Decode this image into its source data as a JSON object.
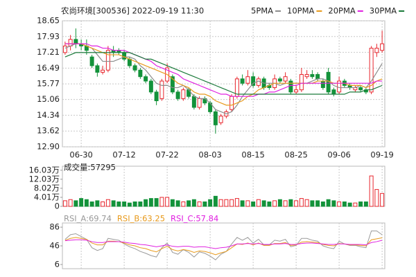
{
  "chart_data": [
    {
      "type": "candlestick",
      "title": "农尚环境[300536] 2022-09-19 11:30",
      "categories": [
        null,
        null,
        null,
        "06-30",
        null,
        null,
        null,
        null,
        null,
        null,
        null,
        "07-12",
        null,
        null,
        null,
        null,
        null,
        null,
        null,
        "07-22",
        null,
        null,
        null,
        null,
        null,
        null,
        null,
        "08-03",
        null,
        null,
        null,
        null,
        null,
        null,
        null,
        "08-15",
        null,
        null,
        null,
        null,
        null,
        null,
        null,
        "08-25",
        null,
        null,
        null,
        null,
        null,
        null,
        null,
        "09-06",
        null,
        null,
        null,
        null,
        null,
        null,
        null,
        "09-19"
      ],
      "open": [
        17.2,
        17.5,
        17.8,
        17.6,
        17.5,
        17.0,
        16.6,
        16.3,
        16.4,
        17.3,
        17.3,
        17.2,
        16.9,
        16.6,
        16.4,
        16.1,
        15.9,
        15.4,
        15.1,
        15.9,
        16.1,
        15.4,
        15.1,
        15.5,
        15.2,
        14.7,
        15.1,
        14.9,
        14.5,
        14.0,
        14.3,
        14.6,
        15.2,
        16.0,
        15.8,
        16.1,
        15.7,
        16.0,
        15.7,
        15.6,
        16.0,
        15.9,
        15.9,
        15.4,
        15.5,
        16.1,
        16.2,
        16.2,
        15.9,
        16.3,
        15.5,
        15.4,
        15.9,
        15.7,
        15.5,
        15.6,
        15.5,
        15.4,
        17.2,
        17.3
      ],
      "high": [
        17.7,
        18.0,
        18.3,
        17.8,
        17.8,
        17.1,
        16.7,
        16.6,
        17.5,
        17.5,
        17.4,
        17.3,
        17.0,
        16.7,
        16.5,
        16.2,
        16.0,
        15.5,
        16.0,
        16.7,
        16.2,
        15.5,
        15.6,
        15.6,
        15.3,
        15.2,
        15.2,
        15.0,
        14.6,
        14.4,
        14.6,
        15.3,
        16.1,
        16.2,
        16.4,
        16.3,
        16.1,
        16.1,
        15.8,
        16.2,
        16.1,
        16.3,
        16.0,
        15.7,
        16.5,
        16.4,
        16.4,
        16.3,
        16.0,
        16.5,
        15.6,
        16.1,
        16.0,
        15.8,
        15.7,
        15.7,
        15.6,
        17.5,
        17.6,
        18.2
      ],
      "low": [
        17.1,
        17.3,
        17.4,
        17.3,
        17.1,
        16.5,
        16.1,
        16.2,
        16.3,
        17.0,
        17.1,
        16.8,
        16.5,
        16.3,
        16.0,
        15.8,
        15.3,
        14.8,
        15.0,
        15.8,
        15.3,
        15.0,
        15.0,
        15.1,
        14.6,
        14.6,
        14.8,
        14.4,
        13.5,
        13.9,
        14.2,
        14.5,
        15.1,
        15.7,
        15.7,
        15.6,
        15.6,
        15.5,
        15.5,
        15.5,
        15.8,
        15.8,
        15.3,
        15.3,
        15.4,
        16.0,
        16.0,
        15.9,
        15.5,
        15.3,
        15.2,
        15.3,
        15.6,
        15.5,
        15.4,
        15.4,
        15.3,
        15.3,
        17.0,
        17.2
      ],
      "close": [
        17.5,
        17.8,
        17.6,
        17.5,
        17.3,
        16.6,
        16.3,
        16.4,
        17.3,
        17.2,
        17.2,
        16.9,
        16.6,
        16.4,
        16.1,
        15.9,
        15.4,
        15.0,
        15.9,
        16.5,
        15.4,
        15.1,
        15.5,
        15.2,
        14.7,
        15.1,
        14.9,
        14.5,
        13.9,
        14.3,
        14.5,
        15.2,
        16.0,
        15.8,
        16.1,
        15.7,
        16.0,
        15.6,
        15.6,
        16.0,
        15.9,
        16.1,
        15.4,
        15.5,
        16.2,
        16.2,
        16.1,
        16.0,
        15.6,
        15.4,
        15.3,
        15.9,
        15.7,
        15.6,
        15.6,
        15.5,
        15.4,
        17.4,
        17.4,
        17.6
      ],
      "up_color": "#e8242b",
      "down_color": "#13923a",
      "series": [
        {
          "name": "5PMA",
          "color": "#8c8c8c",
          "values": [
            17.4,
            17.5,
            17.6,
            17.6,
            17.5,
            17.4,
            17.1,
            16.8,
            16.8,
            16.8,
            16.9,
            17.0,
            17.0,
            16.9,
            16.6,
            16.4,
            16.1,
            15.8,
            15.7,
            15.7,
            15.6,
            15.6,
            15.7,
            15.5,
            15.2,
            15.1,
            15.1,
            14.9,
            14.6,
            14.5,
            14.4,
            14.5,
            14.8,
            15.2,
            15.5,
            15.8,
            15.9,
            15.8,
            15.8,
            15.8,
            15.7,
            15.8,
            15.8,
            15.8,
            15.8,
            15.8,
            15.9,
            16.0,
            16.0,
            15.9,
            15.7,
            15.6,
            15.6,
            15.6,
            15.6,
            15.7,
            15.6,
            15.9,
            16.3,
            16.7
          ]
        },
        {
          "name": "10PMA",
          "color": "#e89a1c",
          "values": [
            17.6,
            17.6,
            17.6,
            17.6,
            17.5,
            17.4,
            17.3,
            17.2,
            17.1,
            17.1,
            17.1,
            17.0,
            16.9,
            16.8,
            16.7,
            16.6,
            16.5,
            16.4,
            16.3,
            16.2,
            16.0,
            15.8,
            15.7,
            15.6,
            15.4,
            15.3,
            15.3,
            15.2,
            15.0,
            14.9,
            14.8,
            14.8,
            14.9,
            15.0,
            15.2,
            15.3,
            15.5,
            15.6,
            15.7,
            15.8,
            15.8,
            15.8,
            15.8,
            15.8,
            15.8,
            15.8,
            15.8,
            15.9,
            15.9,
            15.9,
            15.8,
            15.8,
            15.8,
            15.7,
            15.7,
            15.7,
            15.6,
            15.7,
            15.9,
            16.0
          ]
        },
        {
          "name": "20PMA",
          "color": "#e020e0",
          "values": [
            17.6,
            17.6,
            17.6,
            17.6,
            17.6,
            17.5,
            17.5,
            17.4,
            17.4,
            17.3,
            17.3,
            17.3,
            17.2,
            17.1,
            17.0,
            16.9,
            16.8,
            16.6,
            16.5,
            16.4,
            16.3,
            16.2,
            16.0,
            15.9,
            15.8,
            15.7,
            15.6,
            15.5,
            15.4,
            15.3,
            15.3,
            15.2,
            15.2,
            15.2,
            15.2,
            15.2,
            15.3,
            15.3,
            15.4,
            15.4,
            15.5,
            15.6,
            15.7,
            15.7,
            15.8,
            15.8,
            15.8,
            15.8,
            15.8,
            15.8,
            15.8,
            15.8,
            15.8,
            15.8,
            15.8,
            15.8,
            15.8,
            15.8,
            15.9,
            15.9
          ]
        },
        {
          "name": "30PMA",
          "color": "#1a7a3a",
          "values": [
            17.0,
            17.1,
            17.2,
            17.2,
            17.2,
            17.2,
            17.2,
            17.2,
            17.2,
            17.2,
            17.2,
            17.2,
            17.2,
            17.1,
            17.0,
            16.9,
            16.9,
            16.8,
            16.7,
            16.6,
            16.5,
            16.4,
            16.3,
            16.2,
            16.1,
            16.0,
            15.9,
            15.8,
            15.7,
            15.6,
            15.5,
            15.4,
            15.3,
            15.3,
            15.3,
            15.3,
            15.3,
            15.3,
            15.3,
            15.3,
            15.3,
            15.3,
            15.3,
            15.3,
            15.3,
            15.3,
            15.3,
            15.3,
            15.3,
            15.3,
            15.3,
            15.3,
            15.3,
            15.4,
            15.4,
            15.4,
            15.5,
            15.5,
            15.6,
            15.7
          ]
        }
      ],
      "ylim": [
        12.9,
        18.65
      ],
      "yticks": [
        18.65,
        17.93,
        17.21,
        16.49,
        15.77,
        15.06,
        14.34,
        13.62,
        {
          "value": 12.9,
          "label": "12.90"
        }
      ],
      "grid": true
    },
    {
      "type": "bar",
      "title": "成交量:57295",
      "values": [
        2.5,
        3,
        2.5,
        3.5,
        3,
        2,
        2.5,
        2,
        3,
        2.5,
        2,
        2,
        1.5,
        2,
        2,
        3,
        3.5,
        3.5,
        4,
        4,
        3,
        2.5,
        2,
        2.5,
        3,
        2,
        2,
        3,
        4.5,
        3,
        3,
        3,
        3.5,
        2.5,
        2.5,
        2,
        3,
        2.5,
        2,
        2.5,
        3,
        2.5,
        3,
        2.5,
        3.5,
        3,
        2.5,
        2.5,
        2,
        3,
        2.5,
        2,
        2,
        1.5,
        1.5,
        2,
        2,
        13.5,
        7.5,
        5.73
      ],
      "ylim": [
        0,
        17.82
      ],
      "yticks": [
        {
          "value": 16.03,
          "label": "16.03万"
        },
        {
          "value": 12.03,
          "label": "12.03万"
        },
        {
          "value": 8.02,
          "label": "8.02万"
        },
        {
          "value": 4.01,
          "label": "4.01万"
        },
        0
      ]
    },
    {
      "type": "line",
      "series": [
        {
          "name": "RSI_A:69.74",
          "color": "#9a9a9a",
          "values": [
            60,
            70,
            72,
            66,
            60,
            42,
            36,
            40,
            62,
            60,
            58,
            50,
            44,
            40,
            34,
            30,
            25,
            22,
            42,
            52,
            32,
            28,
            38,
            32,
            22,
            33,
            30,
            24,
            16,
            28,
            34,
            50,
            64,
            58,
            64,
            52,
            60,
            48,
            48,
            58,
            56,
            60,
            44,
            47,
            62,
            62,
            58,
            56,
            46,
            42,
            40,
            56,
            50,
            47,
            47,
            44,
            42,
            78,
            78,
            69.74
          ]
        },
        {
          "name": "RSI_B:63.25",
          "color": "#e89a1c",
          "values": [
            58,
            62,
            64,
            62,
            60,
            52,
            48,
            48,
            56,
            56,
            55,
            52,
            48,
            46,
            42,
            40,
            36,
            33,
            40,
            45,
            38,
            35,
            38,
            36,
            32,
            35,
            34,
            31,
            27,
            31,
            34,
            42,
            50,
            49,
            52,
            48,
            52,
            47,
            47,
            51,
            51,
            53,
            47,
            48,
            54,
            55,
            54,
            53,
            49,
            47,
            46,
            51,
            50,
            48,
            48,
            47,
            46,
            59,
            61,
            63.25
          ]
        },
        {
          "name": "RSI_C:57.84",
          "color": "#e020e0",
          "values": [
            57,
            58,
            59,
            59,
            58,
            55,
            53,
            53,
            55,
            55,
            55,
            54,
            52,
            51,
            49,
            48,
            46,
            44,
            46,
            48,
            45,
            44,
            45,
            45,
            43,
            44,
            44,
            42,
            40,
            42,
            43,
            46,
            50,
            50,
            51,
            50,
            51,
            49,
            49,
            50,
            50,
            51,
            49,
            49,
            51,
            52,
            52,
            51,
            50,
            49,
            49,
            50,
            50,
            49,
            49,
            49,
            48,
            53,
            55,
            57.84
          ]
        }
      ],
      "ylim": [
        -3,
        95
      ],
      "yticks": [
        86,
        46,
        6
      ]
    }
  ]
}
